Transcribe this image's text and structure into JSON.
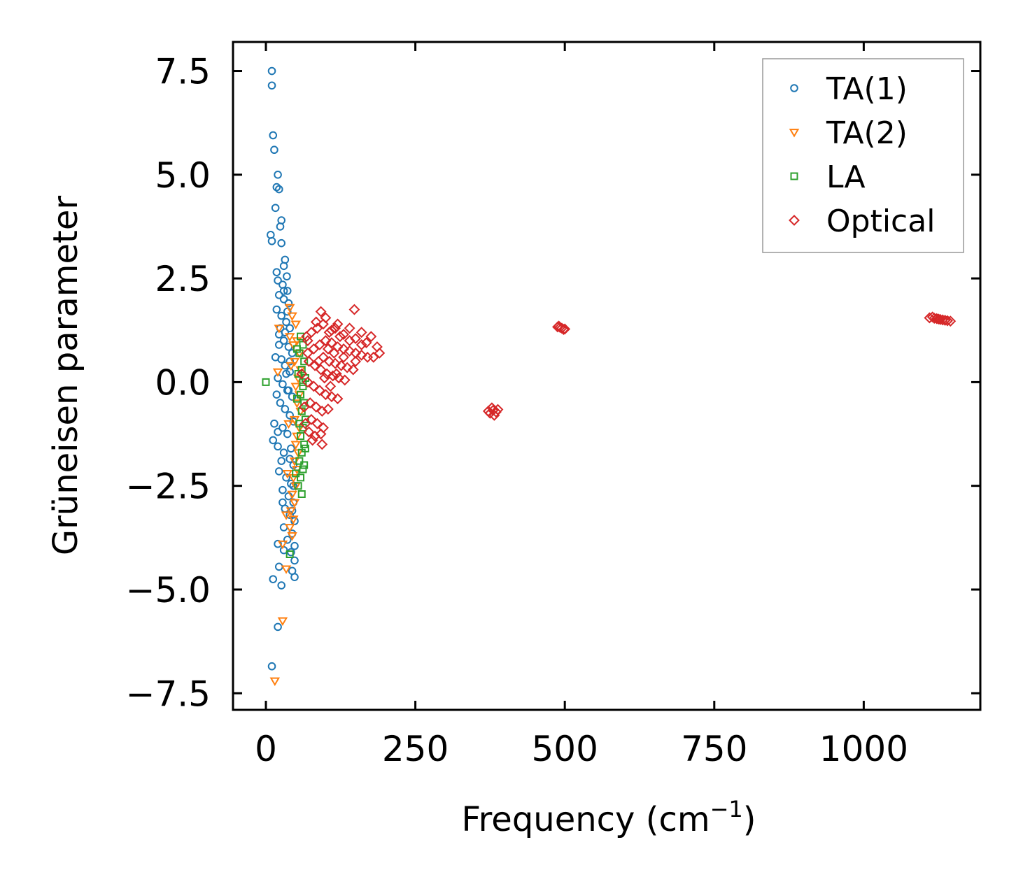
{
  "chart_data": {
    "type": "scatter",
    "title": "",
    "xlabel": "Frequency (cm",
    "xlabel_sup": "−1",
    "xlabel_tail": ")",
    "ylabel": "Grüneisen parameter",
    "xlim": [
      -55,
      1195
    ],
    "ylim": [
      -7.9,
      8.2
    ],
    "xticks": [
      0,
      250,
      500,
      750,
      1000
    ],
    "xtick_labels": [
      "0",
      "250",
      "500",
      "750",
      "1000"
    ],
    "yticks": [
      7.5,
      5.0,
      2.5,
      0.0,
      -2.5,
      -5.0,
      -7.5
    ],
    "ytick_labels": [
      "7.5",
      "5.0",
      "2.5",
      "0.0",
      "−2.5",
      "−5.0",
      "−7.5"
    ],
    "grid": false,
    "legend_position": "top-right",
    "series": [
      {
        "name": "TA(1)",
        "marker": "circle",
        "color": "#1f77b4",
        "points": [
          [
            10,
            7.5
          ],
          [
            10,
            7.15
          ],
          [
            12,
            5.95
          ],
          [
            14,
            5.6
          ],
          [
            20,
            5.0
          ],
          [
            18,
            4.7
          ],
          [
            22,
            4.65
          ],
          [
            16,
            4.2
          ],
          [
            26,
            3.9
          ],
          [
            24,
            3.75
          ],
          [
            8,
            3.55
          ],
          [
            10,
            3.4
          ],
          [
            26,
            3.35
          ],
          [
            32,
            2.95
          ],
          [
            30,
            2.8
          ],
          [
            18,
            2.65
          ],
          [
            35,
            2.55
          ],
          [
            20,
            2.45
          ],
          [
            28,
            2.35
          ],
          [
            36,
            2.2
          ],
          [
            22,
            2.1
          ],
          [
            30,
            2.0
          ],
          [
            38,
            1.9
          ],
          [
            18,
            1.75
          ],
          [
            26,
            1.6
          ],
          [
            34,
            1.45
          ],
          [
            40,
            1.3
          ],
          [
            22,
            1.15
          ],
          [
            30,
            1.0
          ],
          [
            38,
            0.85
          ],
          [
            44,
            0.7
          ],
          [
            26,
            0.55
          ],
          [
            32,
            0.4
          ],
          [
            40,
            0.25
          ],
          [
            20,
            0.1
          ],
          [
            28,
            -0.05
          ],
          [
            36,
            -0.2
          ],
          [
            44,
            -0.35
          ],
          [
            24,
            -0.5
          ],
          [
            32,
            -0.65
          ],
          [
            40,
            -0.8
          ],
          [
            46,
            -0.95
          ],
          [
            28,
            -1.1
          ],
          [
            36,
            -1.25
          ],
          [
            12,
            -1.4
          ],
          [
            20,
            -1.55
          ],
          [
            30,
            -1.7
          ],
          [
            40,
            -1.85
          ],
          [
            46,
            -2.0
          ],
          [
            22,
            -2.15
          ],
          [
            34,
            -2.3
          ],
          [
            42,
            -2.45
          ],
          [
            28,
            -2.6
          ],
          [
            38,
            -2.75
          ],
          [
            46,
            -2.9
          ],
          [
            32,
            -3.05
          ],
          [
            40,
            -3.2
          ],
          [
            48,
            -3.35
          ],
          [
            30,
            -3.5
          ],
          [
            44,
            -3.65
          ],
          [
            36,
            -3.8
          ],
          [
            20,
            -3.9
          ],
          [
            48,
            -3.95
          ],
          [
            42,
            -4.1
          ],
          [
            30,
            -4.05
          ],
          [
            48,
            -4.3
          ],
          [
            22,
            -4.45
          ],
          [
            44,
            -4.55
          ],
          [
            12,
            -4.75
          ],
          [
            48,
            -4.7
          ],
          [
            26,
            -4.9
          ],
          [
            20,
            -5.9
          ],
          [
            10,
            -6.85
          ],
          [
            14,
            -1.0
          ],
          [
            16,
            0.6
          ],
          [
            18,
            -0.3
          ],
          [
            24,
            1.3
          ],
          [
            34,
            0.2
          ],
          [
            42,
            -1.6
          ],
          [
            38,
            -0.2
          ],
          [
            30,
            2.2
          ],
          [
            26,
            -1.9
          ],
          [
            22,
            0.9
          ],
          [
            36,
            1.7
          ],
          [
            28,
            -2.9
          ],
          [
            40,
            0.5
          ],
          [
            44,
            -3.1
          ],
          [
            20,
            -1.2
          ],
          [
            32,
            1.2
          ],
          [
            46,
            -2.5
          ]
        ]
      },
      {
        "name": "TA(2)",
        "marker": "triangle-down",
        "color": "#ff7f0e",
        "points": [
          [
            15,
            -7.2
          ],
          [
            28,
            -5.75
          ],
          [
            34,
            -4.5
          ],
          [
            28,
            -3.9
          ],
          [
            20,
            0.25
          ],
          [
            40,
            1.8
          ],
          [
            44,
            1.6
          ],
          [
            50,
            1.4
          ],
          [
            22,
            1.3
          ],
          [
            52,
            1.0
          ],
          [
            46,
            0.9
          ],
          [
            56,
            0.7
          ],
          [
            48,
            0.5
          ],
          [
            58,
            0.3
          ],
          [
            54,
            0.1
          ],
          [
            50,
            -0.1
          ],
          [
            56,
            -0.3
          ],
          [
            52,
            -0.5
          ],
          [
            58,
            -0.7
          ],
          [
            48,
            -0.9
          ],
          [
            56,
            -1.1
          ],
          [
            52,
            -1.3
          ],
          [
            50,
            -1.5
          ],
          [
            54,
            -1.7
          ],
          [
            48,
            -1.9
          ],
          [
            52,
            -2.1
          ],
          [
            46,
            -2.3
          ],
          [
            50,
            -2.5
          ],
          [
            44,
            -2.7
          ],
          [
            48,
            -2.9
          ],
          [
            42,
            -3.1
          ],
          [
            46,
            -3.3
          ],
          [
            40,
            -3.5
          ],
          [
            44,
            -3.7
          ],
          [
            38,
            -1.0
          ],
          [
            42,
            0.4
          ],
          [
            36,
            -2.2
          ],
          [
            40,
            1.1
          ],
          [
            34,
            -3.2
          ]
        ]
      },
      {
        "name": "LA",
        "marker": "square",
        "color": "#2ca02c",
        "points": [
          [
            0,
            0.0
          ],
          [
            58,
            1.1
          ],
          [
            62,
            0.9
          ],
          [
            56,
            0.7
          ],
          [
            64,
            0.5
          ],
          [
            60,
            0.3
          ],
          [
            66,
            0.1
          ],
          [
            62,
            -0.1
          ],
          [
            58,
            -0.3
          ],
          [
            64,
            -0.5
          ],
          [
            60,
            -0.7
          ],
          [
            66,
            -0.9
          ],
          [
            62,
            -1.1
          ],
          [
            58,
            -1.3
          ],
          [
            64,
            -1.5
          ],
          [
            60,
            -1.7
          ],
          [
            56,
            -1.9
          ],
          [
            62,
            -2.1
          ],
          [
            58,
            -2.3
          ],
          [
            54,
            -2.5
          ],
          [
            60,
            -2.7
          ],
          [
            56,
            -1.0
          ],
          [
            52,
            -0.4
          ],
          [
            54,
            0.2
          ],
          [
            52,
            0.8
          ],
          [
            66,
            -1.6
          ],
          [
            40,
            -4.15
          ],
          [
            50,
            -2.2
          ],
          [
            62,
            0.0
          ],
          [
            64,
            -2.0
          ]
        ]
      },
      {
        "name": "Optical",
        "marker": "diamond",
        "color": "#d62728",
        "points": [
          [
            148,
            1.75
          ],
          [
            92,
            1.7
          ],
          [
            100,
            1.55
          ],
          [
            84,
            1.45
          ],
          [
            120,
            1.4
          ],
          [
            140,
            1.3
          ],
          [
            160,
            1.2
          ],
          [
            176,
            1.1
          ],
          [
            110,
            1.25
          ],
          [
            130,
            1.15
          ],
          [
            150,
            1.05
          ],
          [
            168,
            0.95
          ],
          [
            186,
            0.85
          ],
          [
            190,
            0.7
          ],
          [
            180,
            0.6
          ],
          [
            76,
            1.2
          ],
          [
            70,
            1.0
          ],
          [
            80,
            0.8
          ],
          [
            90,
            0.9
          ],
          [
            100,
            1.0
          ],
          [
            110,
            0.95
          ],
          [
            120,
            0.85
          ],
          [
            130,
            0.8
          ],
          [
            140,
            0.75
          ],
          [
            150,
            0.7
          ],
          [
            160,
            0.65
          ],
          [
            170,
            0.6
          ],
          [
            96,
            0.6
          ],
          [
            106,
            0.5
          ],
          [
            116,
            0.45
          ],
          [
            126,
            0.4
          ],
          [
            136,
            0.35
          ],
          [
            146,
            0.3
          ],
          [
            72,
            0.5
          ],
          [
            82,
            0.4
          ],
          [
            92,
            0.3
          ],
          [
            102,
            0.2
          ],
          [
            112,
            0.15
          ],
          [
            122,
            0.1
          ],
          [
            132,
            0.05
          ],
          [
            70,
            0.0
          ],
          [
            80,
            -0.1
          ],
          [
            90,
            -0.2
          ],
          [
            100,
            -0.3
          ],
          [
            110,
            -0.35
          ],
          [
            120,
            -0.4
          ],
          [
            74,
            -0.5
          ],
          [
            84,
            -0.6
          ],
          [
            94,
            -0.7
          ],
          [
            104,
            -0.65
          ],
          [
            76,
            -0.9
          ],
          [
            86,
            -1.0
          ],
          [
            96,
            -1.1
          ],
          [
            72,
            -1.2
          ],
          [
            82,
            -1.3
          ],
          [
            92,
            -1.25
          ],
          [
            78,
            -1.4
          ],
          [
            94,
            -1.5
          ],
          [
            70,
            0.7
          ],
          [
            140,
            1.0
          ],
          [
            150,
            0.5
          ],
          [
            160,
            0.9
          ],
          [
            130,
            0.6
          ],
          [
            124,
            1.1
          ],
          [
            114,
            0.7
          ],
          [
            104,
            0.8
          ],
          [
            88,
            0.5
          ],
          [
            98,
            0.1
          ],
          [
            108,
            -0.1
          ],
          [
            118,
            0.2
          ],
          [
            86,
            1.3
          ],
          [
            96,
            1.4
          ],
          [
            106,
            1.2
          ],
          [
            116,
            1.3
          ],
          [
            60,
            0.2
          ],
          [
            64,
            -0.6
          ],
          [
            68,
            1.1
          ],
          [
            66,
            -1.0
          ],
          [
            375,
            -0.75
          ],
          [
            380,
            -0.68
          ],
          [
            385,
            -0.72
          ],
          [
            378,
            -0.62
          ],
          [
            382,
            -0.8
          ],
          [
            372,
            -0.7
          ],
          [
            388,
            -0.66
          ],
          [
            490,
            1.35
          ],
          [
            495,
            1.3
          ],
          [
            498,
            1.27
          ],
          [
            492,
            1.32
          ],
          [
            500,
            1.28
          ],
          [
            488,
            1.33
          ],
          [
            1110,
            1.55
          ],
          [
            1118,
            1.54
          ],
          [
            1125,
            1.52
          ],
          [
            1132,
            1.5
          ],
          [
            1140,
            1.48
          ],
          [
            1115,
            1.57
          ],
          [
            1122,
            1.53
          ],
          [
            1128,
            1.51
          ],
          [
            1136,
            1.49
          ],
          [
            1145,
            1.47
          ]
        ]
      }
    ]
  }
}
